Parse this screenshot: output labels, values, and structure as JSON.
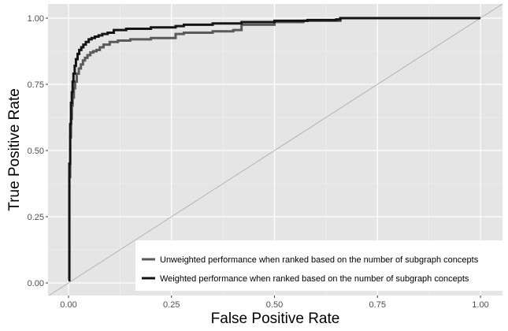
{
  "chart_data": {
    "type": "line",
    "title": "",
    "xlabel": "False Positive Rate",
    "ylabel": "True Positive Rate",
    "xlim": [
      0,
      1
    ],
    "ylim": [
      0,
      1
    ],
    "x_ticks": [
      "0.00",
      "0.25",
      "0.50",
      "0.75",
      "1.00"
    ],
    "y_ticks": [
      "0.00",
      "0.25",
      "0.50",
      "0.75",
      "1.00"
    ],
    "grid": true,
    "background": "#e5e5e5",
    "legend_position": "bottom-right",
    "reference_line": {
      "x": [
        0,
        1
      ],
      "y": [
        0,
        1
      ],
      "color": "#b3b3b3"
    },
    "series": [
      {
        "name": "Unweighted performance when ranked based on the number of subgraph concepts",
        "color": "#5a5a5a",
        "x": [
          0,
          0.002,
          0.004,
          0.006,
          0.008,
          0.01,
          0.013,
          0.016,
          0.02,
          0.025,
          0.03,
          0.035,
          0.04,
          0.046,
          0.053,
          0.06,
          0.068,
          0.076,
          0.085,
          0.1,
          0.12,
          0.15,
          0.2,
          0.26,
          0.28,
          0.35,
          0.4,
          0.42,
          0.5,
          0.57,
          0.63,
          0.66,
          0.7,
          0.8,
          0.9,
          1.0
        ],
        "y": [
          0.01,
          0.4,
          0.55,
          0.62,
          0.67,
          0.7,
          0.735,
          0.76,
          0.79,
          0.81,
          0.825,
          0.84,
          0.85,
          0.86,
          0.87,
          0.875,
          0.88,
          0.89,
          0.9,
          0.91,
          0.915,
          0.92,
          0.925,
          0.94,
          0.945,
          0.95,
          0.955,
          0.975,
          0.985,
          0.99,
          0.99,
          1.0,
          1.0,
          1.0,
          1.0,
          1.0
        ]
      },
      {
        "name": "Weighted performance when ranked based on the number of subgraph concepts",
        "color": "#141414",
        "x": [
          0,
          0.002,
          0.004,
          0.006,
          0.008,
          0.01,
          0.012,
          0.015,
          0.018,
          0.022,
          0.026,
          0.031,
          0.036,
          0.042,
          0.049,
          0.056,
          0.064,
          0.073,
          0.082,
          0.095,
          0.11,
          0.14,
          0.2,
          0.26,
          0.28,
          0.35,
          0.42,
          0.5,
          0.58,
          0.65,
          0.66,
          0.75,
          0.85,
          1.0
        ],
        "y": [
          0.01,
          0.45,
          0.6,
          0.68,
          0.72,
          0.76,
          0.79,
          0.82,
          0.845,
          0.865,
          0.88,
          0.89,
          0.9,
          0.91,
          0.92,
          0.925,
          0.93,
          0.935,
          0.94,
          0.945,
          0.955,
          0.96,
          0.965,
          0.97,
          0.975,
          0.98,
          0.985,
          0.99,
          0.993,
          0.995,
          1.0,
          1.0,
          1.0,
          1.0
        ]
      }
    ]
  }
}
